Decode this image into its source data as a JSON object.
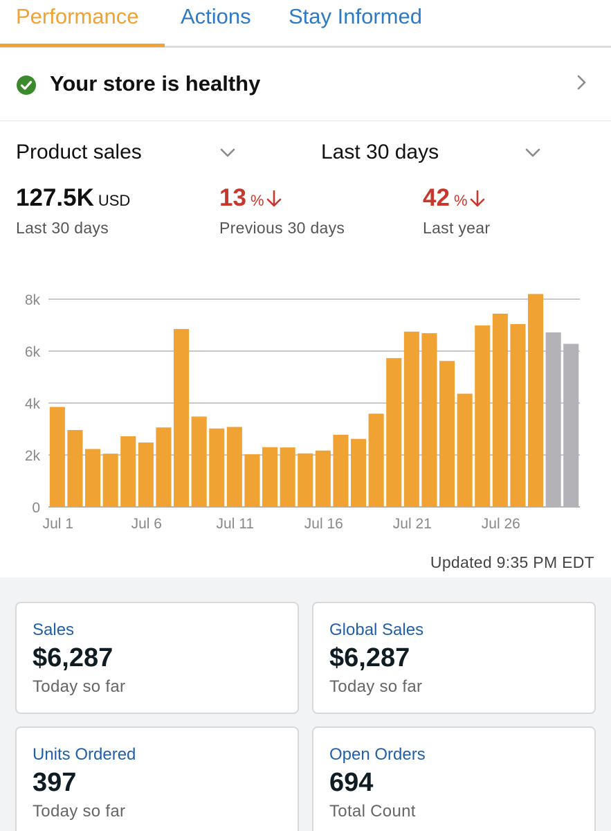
{
  "tabs": [
    {
      "label": "Performance",
      "active": true
    },
    {
      "label": "Actions",
      "active": false
    },
    {
      "label": "Stay Informed",
      "active": false
    }
  ],
  "health": {
    "status_text": "Your store is healthy",
    "icon": "check-circle-icon",
    "status_color": "#3c8a2e"
  },
  "selectors": {
    "metric": {
      "value": "Product sales",
      "icon": "chevron-down-icon"
    },
    "period": {
      "value": "Last 30 days",
      "icon": "chevron-down-icon"
    }
  },
  "metrics": [
    {
      "value": "127.5K",
      "unit": "USD",
      "sub": "Last 30 days",
      "trend": ""
    },
    {
      "value": "13",
      "unit": "%",
      "sub": "Previous 30 days",
      "trend": "down"
    },
    {
      "value": "42",
      "unit": "%",
      "sub": "Last year",
      "trend": "down"
    }
  ],
  "colors": {
    "accent": "#f0a232",
    "link": "#2e7bc4",
    "negative": "#c8372d",
    "bar": "#f0a232",
    "bar_projected": "#b2b2b7"
  },
  "chart_data": {
    "type": "bar",
    "categories": [
      "Jul 1",
      "Jul 2",
      "Jul 3",
      "Jul 4",
      "Jul 5",
      "Jul 6",
      "Jul 7",
      "Jul 8",
      "Jul 9",
      "Jul 10",
      "Jul 11",
      "Jul 12",
      "Jul 13",
      "Jul 14",
      "Jul 15",
      "Jul 16",
      "Jul 17",
      "Jul 18",
      "Jul 19",
      "Jul 20",
      "Jul 21",
      "Jul 22",
      "Jul 23",
      "Jul 24",
      "Jul 25",
      "Jul 26",
      "Jul 27",
      "Jul 28",
      "Jul 29",
      "Jul 30"
    ],
    "values": [
      3850,
      2960,
      2230,
      2050,
      2720,
      2480,
      3060,
      6850,
      3480,
      3020,
      3080,
      2030,
      2300,
      2290,
      2060,
      2170,
      2780,
      2620,
      3590,
      5730,
      6750,
      6690,
      5620,
      4360,
      6990,
      7440,
      7040,
      8200,
      6720,
      6280
    ],
    "projected": [
      false,
      false,
      false,
      false,
      false,
      false,
      false,
      false,
      false,
      false,
      false,
      false,
      false,
      false,
      false,
      false,
      false,
      false,
      false,
      false,
      false,
      false,
      false,
      false,
      false,
      false,
      false,
      false,
      true,
      true
    ],
    "x_tick_labels": [
      "Jul 1",
      "Jul 6",
      "Jul 11",
      "Jul 16",
      "Jul 21",
      "Jul 26"
    ],
    "x_tick_index": [
      0,
      5,
      10,
      15,
      20,
      25
    ],
    "y_tick_labels": [
      "0",
      "2k",
      "4k",
      "6k",
      "8k"
    ],
    "y_tick_values": [
      0,
      2000,
      4000,
      6000,
      8000
    ],
    "ylim": [
      0,
      8000
    ],
    "grid": true,
    "title": "",
    "xlabel": "",
    "ylabel": ""
  },
  "updated_text": "Updated 9:35 PM EDT",
  "cards": [
    {
      "label": "Sales",
      "value": "$6,287",
      "sub": "Today so far"
    },
    {
      "label": "Global Sales",
      "value": "$6,287",
      "sub": "Today so far"
    },
    {
      "label": "Units Ordered",
      "value": "397",
      "sub": "Today so far"
    },
    {
      "label": "Open Orders",
      "value": "694",
      "sub": "Total Count"
    }
  ]
}
